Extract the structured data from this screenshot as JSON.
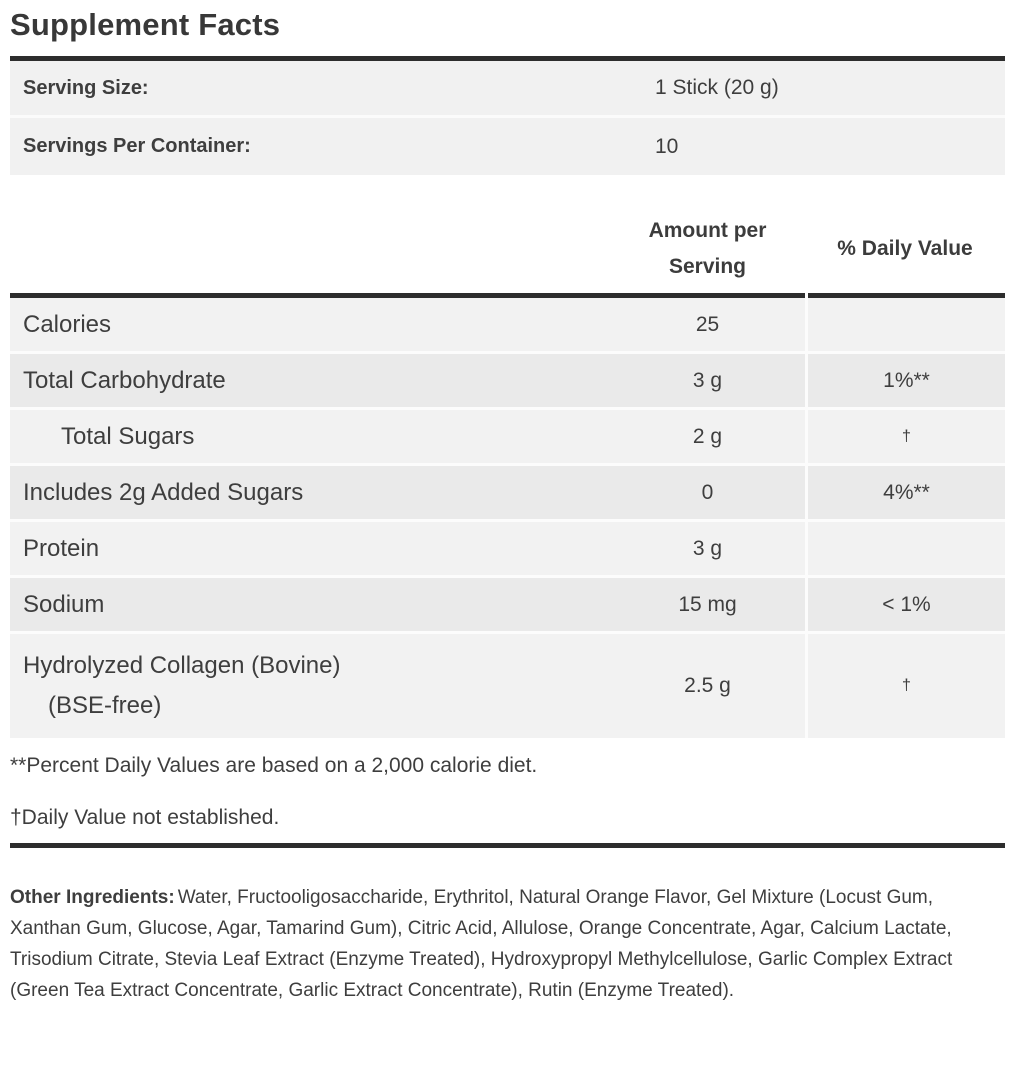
{
  "title": "Supplement Facts",
  "serving_info": {
    "rows": [
      {
        "label": "Serving Size:",
        "value": "1 Stick (20 g)"
      },
      {
        "label": "Servings Per Container:",
        "value": "10"
      }
    ]
  },
  "nutrition_table": {
    "headers": {
      "amount": "Amount per Serving",
      "daily_value": "% Daily Value"
    },
    "rows": [
      {
        "label": "Calories",
        "amount": "25",
        "daily_value": ""
      },
      {
        "label": "Total Carbohydrate",
        "amount": "3 g",
        "daily_value": "1%**"
      },
      {
        "label": "Total Sugars",
        "amount": "2 g",
        "daily_value": "†",
        "indent": true
      },
      {
        "label": "Includes 2g Added Sugars",
        "amount": "0",
        "daily_value": "4%**"
      },
      {
        "label": "Protein",
        "amount": "3 g",
        "daily_value": ""
      },
      {
        "label": "Sodium",
        "amount": "15 mg",
        "daily_value": "< 1%"
      },
      {
        "label": "Hydrolyzed Collagen (Bovine)",
        "label_line2": "(BSE-free)",
        "amount": "2.5 g",
        "daily_value": "†"
      }
    ]
  },
  "footnotes": [
    "**Percent Daily Values are based on a 2,000 calorie diet.",
    "†Daily Value not established."
  ],
  "other_ingredients": {
    "label": "Other Ingredients:",
    "text": "Water, Fructooligosaccharide, Erythritol, Natural Orange Flavor, Gel Mixture (Locust Gum, Xanthan Gum, Glucose, Agar, Tamarind Gum), Citric Acid, Allulose, Orange Concentrate, Agar, Calcium Lactate, Trisodium Citrate, Stevia Leaf Extract (Enzyme Treated), Hydroxypropyl Methylcellulose, Garlic Complex Extract (Green Tea Extract Concentrate, Garlic Extract Concentrate), Rutin (Enzyme Treated)."
  },
  "colors": {
    "rule": "#2d2d2d",
    "row_light": "#f2f2f2",
    "row_dark": "#eaeaea",
    "serving_row": "#f1f1f1",
    "text": "#3e3e3e"
  }
}
